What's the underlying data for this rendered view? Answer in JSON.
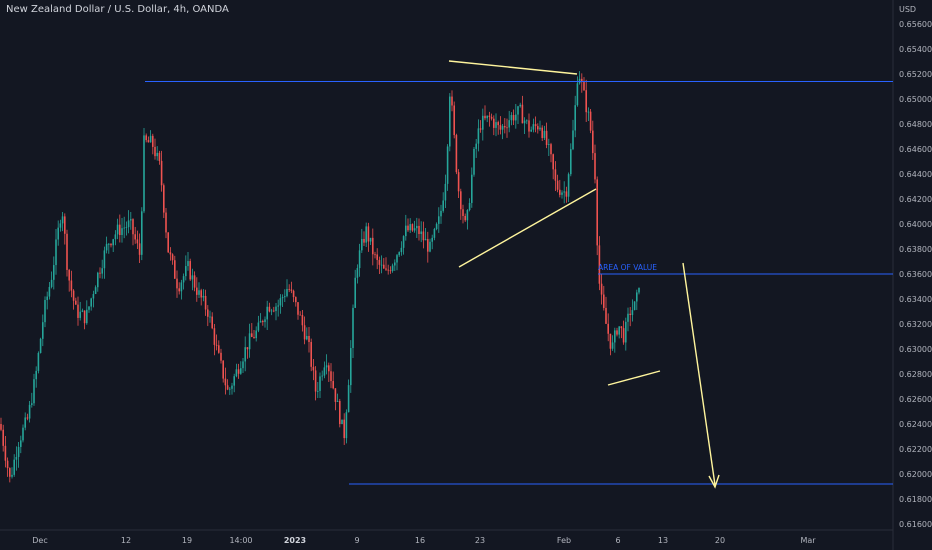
{
  "header": {
    "title": "New Zealand Dollar / U.S. Dollar, 4h, OANDA"
  },
  "chart_data": {
    "type": "candlestick",
    "title": "New Zealand Dollar / U.S. Dollar, 4h, OANDA",
    "y_axis": {
      "unit": "USD",
      "ticks": [
        "0.65600",
        "0.65400",
        "0.65200",
        "0.65000",
        "0.64800",
        "0.64600",
        "0.64400",
        "0.64200",
        "0.64000",
        "0.63800",
        "0.63600",
        "0.63400",
        "0.63200",
        "0.63000",
        "0.62800",
        "0.62600",
        "0.62400",
        "0.62200",
        "0.62000",
        "0.61800",
        "0.61600"
      ],
      "range": [
        0.6156,
        0.6572
      ]
    },
    "x_axis": {
      "ticks": [
        {
          "label": "Dec",
          "bold": false
        },
        {
          "label": "12",
          "bold": false
        },
        {
          "label": "19",
          "bold": false
        },
        {
          "label": "14:00",
          "bold": false
        },
        {
          "label": "2023",
          "bold": true
        },
        {
          "label": "9",
          "bold": false
        },
        {
          "label": "16",
          "bold": false
        },
        {
          "label": "23",
          "bold": false
        },
        {
          "label": "Feb",
          "bold": false
        },
        {
          "label": "6",
          "bold": false
        },
        {
          "label": "13",
          "bold": false
        },
        {
          "label": "20",
          "bold": false
        },
        {
          "label": "Mar",
          "bold": false
        }
      ]
    },
    "levels": [
      0.6514,
      0.636,
      0.6192
    ],
    "annotation": "AREA OF VALUE",
    "colors": {
      "up": "#26a69a",
      "down": "#ef5350",
      "level": "#2962ff",
      "trend": "#fff59d"
    }
  }
}
